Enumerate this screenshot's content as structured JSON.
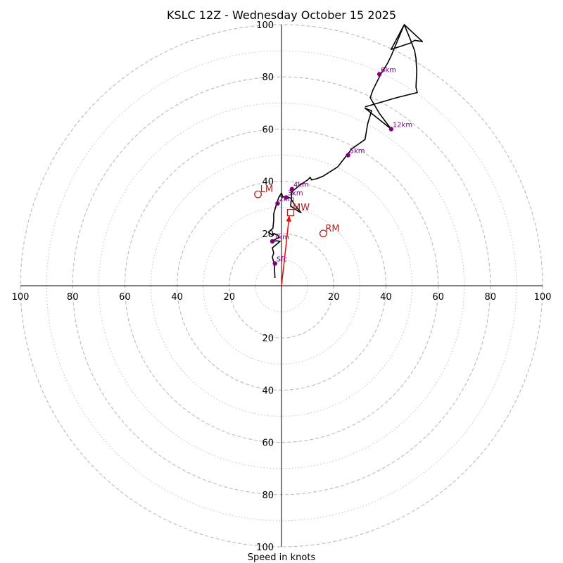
{
  "chart_data": {
    "type": "hodograph",
    "title": "KSLC 12Z - Wednesday October 15 2025",
    "xlabel": "Speed in knots",
    "units": "knots",
    "range": [
      -100,
      100
    ],
    "ring_step": 10,
    "labeled_rings": [
      20,
      40,
      60,
      80,
      100
    ],
    "tick_labels": [
      "20",
      "40",
      "60",
      "80",
      "100"
    ],
    "colors": {
      "ring": "#bbbbbb",
      "trace": "#000000",
      "height_marker": "#800080",
      "motion": "#b22222",
      "shear_vector": "#ff0000"
    },
    "wind_trace": [
      [
        -2.5,
        3
      ],
      [
        -2.7,
        7
      ],
      [
        -3,
        9
      ],
      [
        -3.5,
        11
      ],
      [
        -3,
        12.5
      ],
      [
        -3.5,
        14.5
      ],
      [
        -0.5,
        17
      ],
      [
        -1.8,
        17.2
      ],
      [
        -3.8,
        17
      ],
      [
        -1,
        18.5
      ],
      [
        -1.5,
        19.5
      ],
      [
        -3,
        20
      ],
      [
        -3.3,
        19.2
      ],
      [
        -5,
        20.5
      ],
      [
        -3.3,
        22
      ],
      [
        -3,
        25
      ],
      [
        -3,
        27.5
      ],
      [
        -2,
        31
      ],
      [
        -1,
        34
      ],
      [
        0,
        35.5
      ],
      [
        0.5,
        34
      ],
      [
        2,
        34.2
      ],
      [
        3.5,
        33.5
      ],
      [
        5,
        31
      ],
      [
        7.5,
        28
      ],
      [
        6.5,
        28.5
      ],
      [
        3.5,
        30.5
      ],
      [
        4,
        36
      ],
      [
        7,
        38.5
      ],
      [
        10,
        40.5
      ],
      [
        11,
        41.5
      ],
      [
        11.5,
        40.5
      ],
      [
        13.5,
        41
      ],
      [
        16,
        42
      ],
      [
        21.5,
        45.5
      ],
      [
        25,
        50
      ],
      [
        27,
        52.5
      ],
      [
        32,
        56
      ],
      [
        33,
        62
      ],
      [
        34.5,
        67
      ],
      [
        32,
        68
      ],
      [
        42,
        60
      ],
      [
        37.5,
        66
      ],
      [
        34,
        72
      ],
      [
        35,
        75
      ],
      [
        38,
        81
      ],
      [
        40.5,
        85
      ],
      [
        42,
        88
      ],
      [
        47,
        100
      ],
      [
        54,
        93.5
      ],
      [
        51,
        94
      ],
      [
        49.5,
        93
      ],
      [
        42,
        90.5
      ],
      [
        47,
        100
      ],
      [
        49.5,
        94
      ],
      [
        51,
        90
      ],
      [
        51.5,
        87
      ],
      [
        51.8,
        82
      ],
      [
        51.5,
        76
      ],
      [
        52,
        74
      ],
      [
        44,
        72
      ],
      [
        32,
        68.5
      ]
    ],
    "height_markers": [
      {
        "label": "Sfc",
        "u": -2.5,
        "v": 8.5
      },
      {
        "label": "1km",
        "u": -3.5,
        "v": 17
      },
      {
        "label": "2km",
        "u": -1.5,
        "v": 31.5
      },
      {
        "label": "3km",
        "u": 1.8,
        "v": 33.8
      },
      {
        "label": "4km",
        "u": 4,
        "v": 37
      },
      {
        "label": "5km",
        "u": 25.5,
        "v": 50
      },
      {
        "label": "6km",
        "u": 37.5,
        "v": 81
      },
      {
        "label": "12km",
        "u": 42,
        "v": 60
      }
    ],
    "storm_motions": [
      {
        "label": "LM",
        "u": -9,
        "v": 35,
        "marker": "circle"
      },
      {
        "label": "RM",
        "u": 16,
        "v": 20,
        "marker": "circle"
      },
      {
        "label": "MW",
        "u": 3.5,
        "v": 28,
        "marker": "square"
      }
    ],
    "shear_vector": {
      "from": [
        0,
        0
      ],
      "to": [
        3,
        27
      ]
    }
  }
}
